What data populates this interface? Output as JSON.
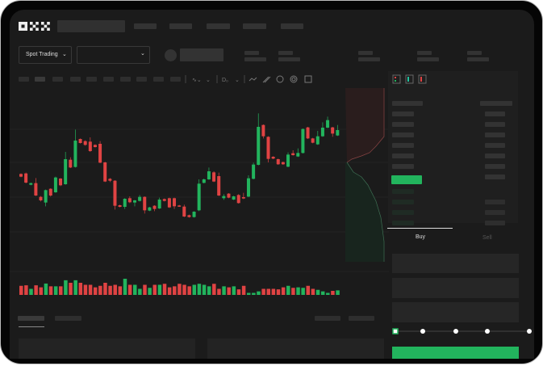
{
  "brand": {
    "logo": "OKX"
  },
  "toolbar": {
    "market_type": "Spot Trading"
  },
  "trade": {
    "tabs": [
      {
        "label": "Buy",
        "active": true
      },
      {
        "label": "Sell",
        "active": false
      }
    ],
    "slider_level": 0
  },
  "colors": {
    "up": "#22b45d",
    "down": "#e04343",
    "background": "#1b1b1b",
    "panel": "#202020"
  },
  "icons": [
    "chevron-down-icon",
    "line-tool-icon",
    "pencil-icon",
    "camera-icon",
    "circle-icon",
    "expand-icon",
    "orderbook-both-icon",
    "orderbook-bids-icon",
    "orderbook-asks-icon"
  ],
  "chart_data": {
    "type": "candlestick",
    "title": "",
    "xlabel": "",
    "ylabel": "",
    "grid": true,
    "candles": [
      [
        500,
        490,
        502,
        488
      ],
      [
        502,
        468,
        505,
        465
      ],
      [
        460,
        466,
        468,
        458
      ],
      [
        466,
        420,
        485,
        418
      ],
      [
        415,
        402,
        418,
        398
      ],
      [
        394,
        440,
        442,
        380
      ],
      [
        445,
        420,
        447,
        416
      ],
      [
        432,
        487,
        490,
        430
      ],
      [
        483,
        458,
        485,
        455
      ],
      [
        462,
        555,
        582,
        460
      ],
      [
        553,
        524,
        562,
        522
      ],
      [
        526,
        624,
        665,
        524
      ],
      [
        630,
        615,
        632,
        613
      ],
      [
        622,
        608,
        625,
        605
      ],
      [
        620,
        585,
        636,
        582
      ],
      [
        608,
        600,
        610,
        598
      ],
      [
        612,
        542,
        622,
        540
      ],
      [
        543,
        472,
        545,
        470
      ],
      [
        482,
        475,
        485,
        470
      ],
      [
        475,
        382,
        477,
        368
      ],
      [
        384,
        378,
        386,
        376
      ],
      [
        378,
        408,
        410,
        370
      ],
      [
        410,
        395,
        417,
        392
      ],
      [
        394,
        402,
        404,
        380
      ],
      [
        400,
        415,
        422,
        398
      ],
      [
        415,
        365,
        417,
        353
      ],
      [
        364,
        376,
        378,
        362
      ],
      [
        382,
        370,
        384,
        362
      ],
      [
        372,
        405,
        412,
        370
      ],
      [
        407,
        400,
        409,
        398
      ],
      [
        410,
        376,
        412,
        374
      ],
      [
        410,
        380,
        412,
        370
      ],
      [
        383,
        380,
        385,
        378
      ],
      [
        379,
        342,
        386,
        340
      ],
      [
        347,
        340,
        349,
        338
      ],
      [
        340,
        360,
        362,
        338
      ],
      [
        365,
        464,
        480,
        362
      ],
      [
        467,
        480,
        483,
        465
      ],
      [
        480,
        510,
        524,
        478
      ],
      [
        506,
        472,
        510,
        470
      ],
      [
        492,
        420,
        505,
        418
      ],
      [
        410,
        418,
        425,
        404
      ],
      [
        427,
        412,
        429,
        410
      ],
      [
        405,
        417,
        419,
        403
      ],
      [
        422,
        392,
        425,
        390
      ],
      [
        414,
        409,
        430,
        407
      ],
      [
        416,
        484,
        495,
        414
      ],
      [
        482,
        535,
        542,
        480
      ],
      [
        534,
        675,
        725,
        532
      ],
      [
        682,
        640,
        684,
        632
      ],
      [
        638,
        556,
        640,
        543
      ],
      [
        564,
        557,
        566,
        555
      ],
      [
        555,
        536,
        557,
        534
      ],
      [
        544,
        536,
        546,
        534
      ],
      [
        527,
        572,
        580,
        525
      ],
      [
        577,
        570,
        588,
        568
      ],
      [
        565,
        578,
        595,
        563
      ],
      [
        578,
        667,
        669,
        576
      ],
      [
        673,
        632,
        675,
        630
      ],
      [
        632,
        616,
        634,
        614
      ],
      [
        610,
        640,
        660,
        608
      ],
      [
        640,
        672,
        692,
        638
      ],
      [
        672,
        700,
        713,
        670
      ],
      [
        673,
        650,
        675,
        638
      ],
      [
        643,
        663,
        682,
        641
      ]
    ],
    "volume": [
      36,
      38,
      24,
      38,
      30,
      45,
      34,
      34,
      34,
      58,
      48,
      58,
      48,
      40,
      40,
      30,
      36,
      48,
      36,
      40,
      34,
      64,
      40,
      40,
      24,
      40,
      28,
      40,
      40,
      44,
      30,
      34,
      44,
      40,
      34,
      40,
      44,
      40,
      34,
      44,
      24,
      34,
      30,
      34,
      22,
      36,
      8,
      8,
      14,
      24,
      24,
      24,
      22,
      30,
      36,
      28,
      30,
      28,
      36,
      24,
      20,
      14,
      8,
      16,
      18
    ]
  }
}
